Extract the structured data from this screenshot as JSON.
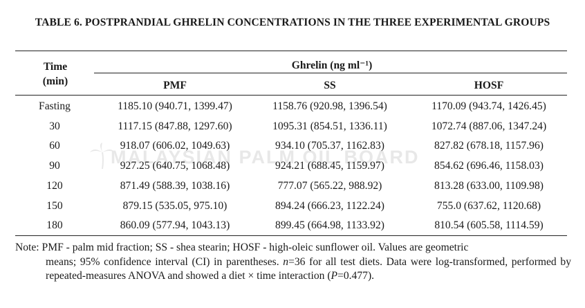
{
  "caption": "TABLE 6. POSTPRANDIAL GHRELIN CONCENTRATIONS IN THE THREE EXPERIMENTAL GROUPS",
  "table": {
    "time_header_line1": "Time",
    "time_header_line2": "(min)",
    "group_header": "Ghrelin (ng ml⁻¹)",
    "columns": [
      "PMF",
      "SS",
      "HOSF"
    ],
    "rows": [
      {
        "time": "Fasting",
        "pmf": "1185.10 (940.71, 1399.47)",
        "ss": "1158.76 (920.98, 1396.54)",
        "hosf": "1170.09 (943.74, 1426.45)"
      },
      {
        "time": "30",
        "pmf": "1117.15 (847.88, 1297.60)",
        "ss": "1095.31 (854.51, 1336.11)",
        "hosf": "1072.74 (887.06, 1347.24)"
      },
      {
        "time": "60",
        "pmf": "918.07 (606.02, 1049.63)",
        "ss": "934.10 (705.37, 1162.83)",
        "hosf": "827.82 (678.18, 1157.96)"
      },
      {
        "time": "90",
        "pmf": "927.25 (640.75, 1068.48)",
        "ss": "924.21 (688.45, 1159.97)",
        "hosf": "854.62 (696.46, 1158.03)"
      },
      {
        "time": "120",
        "pmf": "871.49 (588.39, 1038.16)",
        "ss": "777.07 (565.22, 988.92)",
        "hosf": "813.28 (633.00, 1109.98)"
      },
      {
        "time": "150",
        "pmf": "879.15 (535.05, 975.10)",
        "ss": "894.24 (666.23, 1122.24)",
        "hosf": "755.0 (637.62, 1120.68)"
      },
      {
        "time": "180",
        "pmf": "860.09 (577.94, 1043.13)",
        "ss": "899.45 (664.98, 1133.92)",
        "hosf": "810.54 (605.58, 1114.59)"
      }
    ]
  },
  "note": {
    "lead": "Note: PMF - palm mid fraction; SS - shea stearin; HOSF - high-oleic sunflower oil. Values are geometric",
    "part1": "means; 95% confidence interval (CI) in parentheses. ",
    "n_var": "n",
    "part2": "=36 for all test diets. Data were log-transformed, performed by repeated-measures ANOVA and showed a diet × time interaction (",
    "p_var": "P",
    "part3": "=0.477)."
  },
  "watermark": "MALAYSIAN PALM OIL BOARD"
}
